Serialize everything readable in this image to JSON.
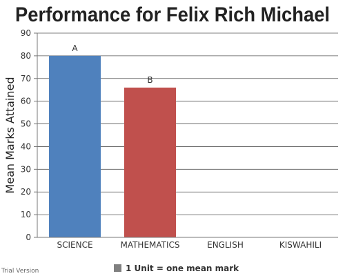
{
  "chart_data": {
    "type": "bar",
    "title": "Performance for Felix Rich Michael",
    "ylabel": "Mean Marks Attained",
    "xlabel": "",
    "categories": [
      "SCIENCE",
      "MATHEMATICS",
      "ENGLISH",
      "KISWAHILI"
    ],
    "values": [
      80,
      66,
      0,
      0
    ],
    "data_labels": [
      "A",
      "B",
      "",
      ""
    ],
    "colors": [
      "#4f81bd",
      "#c0504d",
      "#9bbb59",
      "#8064a2"
    ],
    "ylim": [
      0,
      90
    ],
    "yticks": [
      0,
      10,
      20,
      30,
      40,
      50,
      60,
      70,
      80,
      90
    ],
    "grid": true,
    "legend": {
      "placement": "bottom",
      "color": "#808080",
      "label": "1 Unit = one mean mark"
    }
  },
  "footer": {
    "watermark": "Trial Version"
  }
}
